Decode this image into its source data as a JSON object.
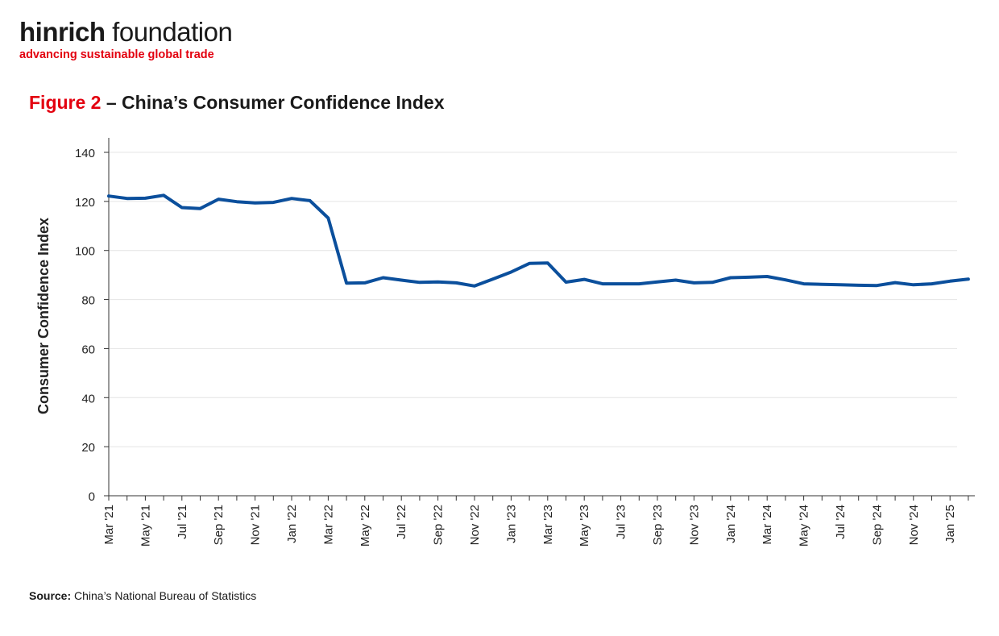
{
  "brand": {
    "name_bold": "hinrich",
    "name_light": " foundation",
    "tagline": "advancing sustainable global trade",
    "accent_color": "#e3000f"
  },
  "figure": {
    "number": "Figure 2",
    "separator": " – ",
    "title": "China’s Consumer Confidence Index"
  },
  "source": {
    "label": "Source:",
    "text": " China’s National Bureau of Statistics"
  },
  "chart_data": {
    "type": "line",
    "ylabel": "Consumer Confidence Index",
    "xlabel": "",
    "ylim": [
      0,
      140
    ],
    "yticks": [
      0,
      20,
      40,
      60,
      80,
      100,
      120,
      140
    ],
    "grid": "horizontal",
    "line_color": "#0b4f9c",
    "x": [
      "Mar '21",
      "Apr '21",
      "May '21",
      "Jun '21",
      "Jul '21",
      "Aug '21",
      "Sep '21",
      "Oct '21",
      "Nov '21",
      "Dec '21",
      "Jan '22",
      "Feb '22",
      "Mar '22",
      "Apr '22",
      "May '22",
      "Jun '22",
      "Jul '22",
      "Aug '22",
      "Sep '22",
      "Oct '22",
      "Nov '22",
      "Dec '22",
      "Jan '23",
      "Feb '23",
      "Mar '23",
      "Apr '23",
      "May '23",
      "Jun '23",
      "Jul '23",
      "Aug '23",
      "Sep '23",
      "Oct '23",
      "Nov '23",
      "Dec '23",
      "Jan '24",
      "Feb '24",
      "Mar '24",
      "Apr '24",
      "May '24",
      "Jun '24",
      "Jul '24",
      "Aug '24",
      "Sep '24",
      "Oct '24",
      "Nov '24",
      "Dec '24",
      "Jan '25",
      "Feb '25"
    ],
    "tick_labels": [
      "Mar '21",
      "May '21",
      "Jul '21",
      "Sep '21",
      "Nov '21",
      "Jan '22",
      "Mar '22",
      "May '22",
      "Jul '22",
      "Sep '22",
      "Nov '22",
      "Jan '23",
      "Mar '23",
      "May '23",
      "Jul '23",
      "Sep '23",
      "Nov '23",
      "Jan '24",
      "Mar '24",
      "May '24",
      "Jul '24",
      "Sep '24",
      "Nov '24",
      "Jan '25"
    ],
    "series": [
      {
        "values": [
          122.2,
          121.2,
          121.3,
          122.5,
          117.5,
          117.1,
          120.9,
          119.9,
          119.4,
          119.6,
          121.2,
          120.3,
          113.2,
          86.7,
          86.8,
          88.9,
          87.9,
          87.0,
          87.2,
          86.8,
          85.5,
          88.3,
          91.2,
          94.7,
          94.9,
          87.1,
          88.2,
          86.4,
          86.4,
          86.4,
          87.2,
          87.9,
          86.8,
          87.0,
          88.9,
          89.1,
          89.4,
          88.0,
          86.4,
          86.2,
          86.0,
          85.8,
          85.7,
          86.9,
          86.0,
          86.4,
          87.5,
          88.3
        ]
      }
    ]
  }
}
